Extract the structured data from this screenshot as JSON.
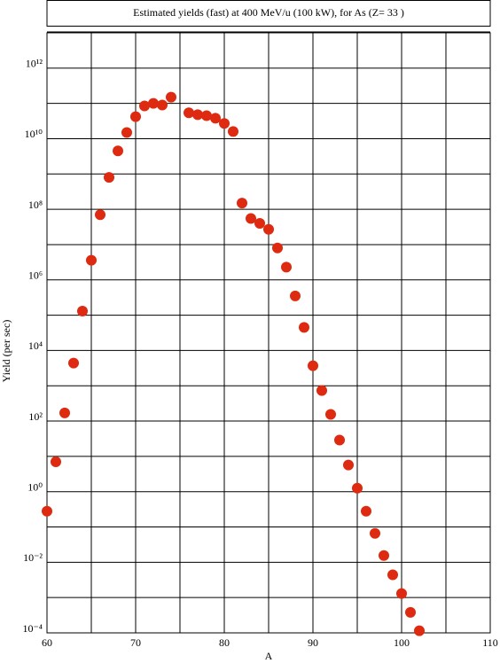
{
  "chart_data": {
    "type": "scatter",
    "title": "Estimated yields (fast) at 400 MeV/u (100 kW), for As (Z= 33 )",
    "x_label": "A",
    "y_label": "Yield (per sec)",
    "y_scale": "log",
    "grid": true,
    "color": "#dd2a10",
    "xlim": [
      60,
      110
    ],
    "xticks": [
      60,
      70,
      80,
      90,
      100,
      110
    ],
    "x_minor_ticks": [
      65,
      75,
      85,
      95,
      105
    ],
    "ylim": [
      0.0001,
      10000000000000
    ],
    "yticks": [
      {
        "value": 0.0001,
        "label": "10⁻⁴"
      },
      {
        "value": 0.01,
        "label": "10⁻²"
      },
      {
        "value": 1,
        "label": "10⁰"
      },
      {
        "value": 100,
        "label": "10²"
      },
      {
        "value": 10000,
        "label": "10⁴"
      },
      {
        "value": 1000000,
        "label": "10⁶"
      },
      {
        "value": 100000000,
        "label": "10⁸"
      },
      {
        "value": 10000000000,
        "label": "10¹⁰"
      },
      {
        "value": 1000000000000,
        "label": "10¹²"
      }
    ],
    "y_minor_ticks": [
      0.001,
      0.1,
      10,
      1000,
      100000,
      10000000,
      1000000000,
      100000000000
    ],
    "x": [
      60,
      61,
      62,
      63,
      64,
      65,
      66,
      67,
      68,
      69,
      70,
      71,
      72,
      73,
      74,
      76,
      77,
      78,
      79,
      80,
      81,
      82,
      83,
      84,
      85,
      86,
      87,
      88,
      89,
      90,
      91,
      92,
      93,
      94,
      95,
      96,
      97,
      98,
      99,
      100,
      101,
      102
    ],
    "values": [
      0.28,
      7,
      170,
      4400,
      130000,
      3600000,
      70000000,
      800000000,
      4500000000,
      15000000000,
      42000000000,
      85000000000,
      100000000000,
      90000000000,
      150000000000,
      54000000000,
      48000000000,
      45000000000,
      38000000000,
      27000000000,
      16000000000,
      150000000,
      55000000,
      40000000,
      27000000,
      8000000,
      2300000,
      350000,
      45000,
      3700,
      730,
      155,
      29,
      5.7,
      1.26,
      0.28,
      0.066,
      0.0155,
      0.0044,
      0.0013,
      0.00038,
      0.000115
    ]
  }
}
